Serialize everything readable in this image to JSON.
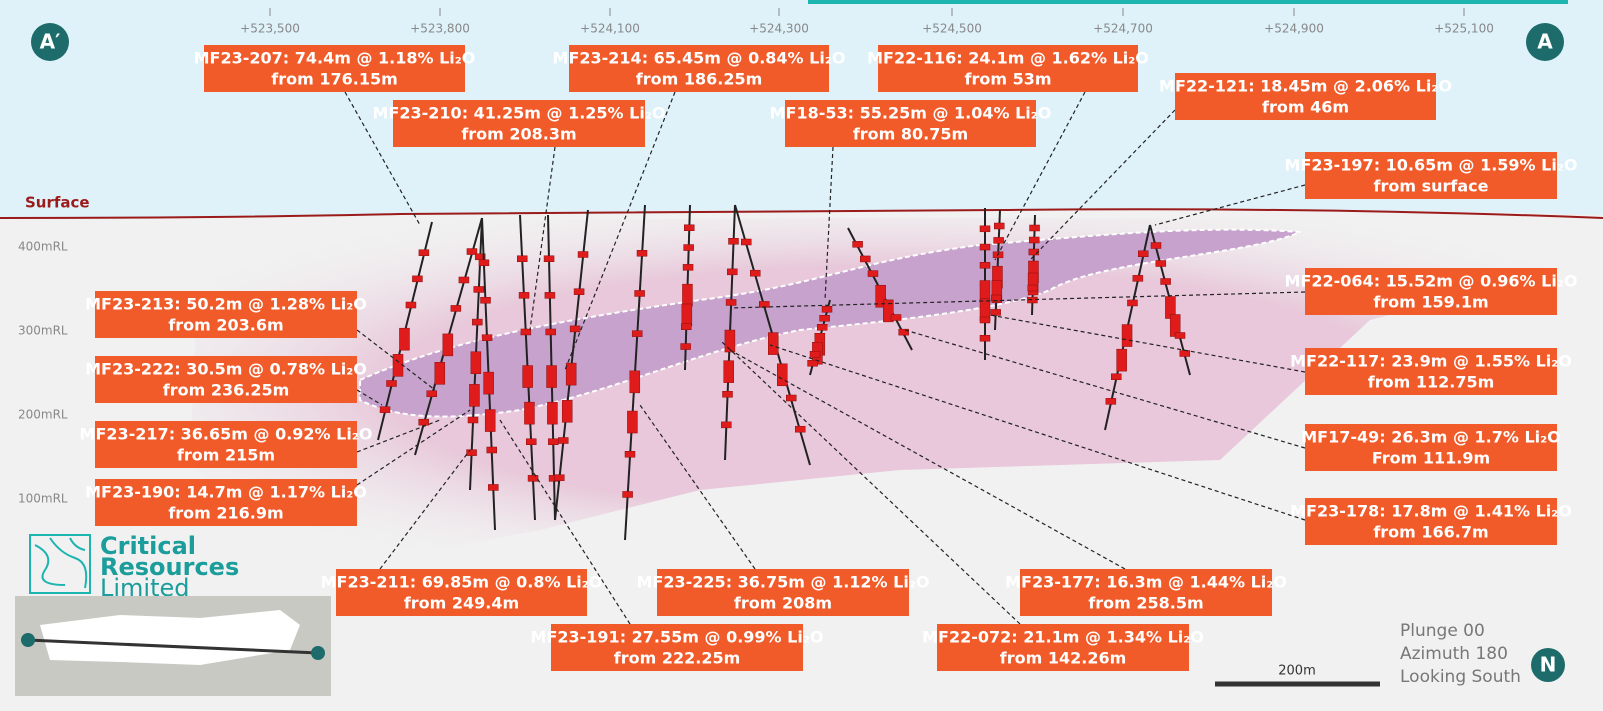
{
  "markers": {
    "left": "A′",
    "right": "A"
  },
  "surface_label": "Surface",
  "eastings": [
    "+523,500",
    "+523,800",
    "+524,100",
    "+524,300",
    "+524,500",
    "+524,700",
    "+524,900",
    "+525,100"
  ],
  "elevations": [
    "400mRL",
    "300mRL",
    "200mRL",
    "100mRL"
  ],
  "callouts": [
    {
      "lines": [
        "MF23-207: 74.4m @ 1.18% Li₂O",
        "from 176.15m"
      ]
    },
    {
      "lines": [
        "MF23-214: 65.45m @ 0.84% Li₂O",
        "from 186.25m"
      ]
    },
    {
      "lines": [
        "MF22-116: 24.1m @ 1.62% Li₂O",
        "from 53m"
      ]
    },
    {
      "lines": [
        "MF22-121: 18.45m @ 2.06% Li₂O",
        "from 46m"
      ]
    },
    {
      "lines": [
        "MF23-210: 41.25m @ 1.25% Li₂O",
        "from 208.3m"
      ]
    },
    {
      "lines": [
        "MF18-53: 55.25m @ 1.04% Li₂O",
        "from 80.75m"
      ]
    },
    {
      "lines": [
        "MF23-197: 10.65m @ 1.59% Li₂O",
        "from surface"
      ]
    },
    {
      "lines": [
        "MF22-064: 15.52m @ 0.96% Li₂O",
        "from 159.1m"
      ]
    },
    {
      "lines": [
        "MF22-117: 23.9m @ 1.55% Li₂O",
        "from 112.75m"
      ]
    },
    {
      "lines": [
        "MF17-49: 26.3m @ 1.7% Li₂O",
        "From 111.9m"
      ]
    },
    {
      "lines": [
        "MF23-178: 17.8m @ 1.41% Li₂O",
        "from 166.7m"
      ]
    },
    {
      "lines": [
        "MF23-213: 50.2m @ 1.28% Li₂O",
        "from 203.6m"
      ]
    },
    {
      "lines": [
        "MF23-222: 30.5m @ 0.78% Li₂O",
        "from 236.25m"
      ]
    },
    {
      "lines": [
        "MF23-217: 36.65m @ 0.92% Li₂O",
        "from 215m"
      ]
    },
    {
      "lines": [
        "MF23-190: 14.7m @ 1.17% Li₂O",
        "from 216.9m"
      ]
    },
    {
      "lines": [
        "MF23-211: 69.85m @ 0.8% Li₂O",
        "from 249.4m"
      ]
    },
    {
      "lines": [
        "MF23-225: 36.75m @ 1.12% Li₂O",
        "from 208m"
      ]
    },
    {
      "lines": [
        "MF23-191: 27.55m @ 0.99% Li₂O",
        "from 222.25m"
      ]
    },
    {
      "lines": [
        "MF23-177: 16.3m @ 1.44% Li₂O",
        "from 258.5m"
      ]
    },
    {
      "lines": [
        "MF22-072: 21.1m @ 1.34% Li₂O",
        "from 142.26m"
      ]
    }
  ],
  "logo": [
    "Critical",
    "Resources",
    "Limited"
  ],
  "view": [
    "Plunge 00",
    "Azimuth 180",
    "Looking South"
  ],
  "scale_bar": "200m",
  "north": "N"
}
